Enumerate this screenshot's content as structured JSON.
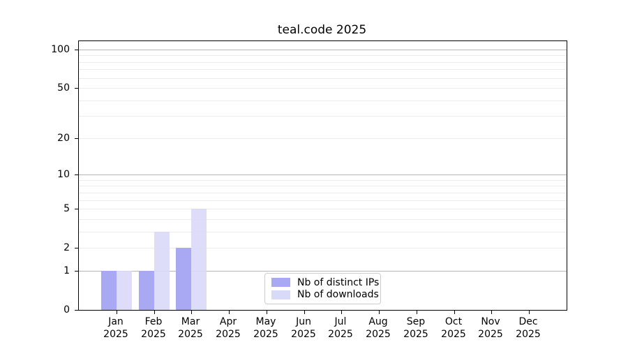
{
  "chart_data": {
    "type": "bar",
    "title": "teal.code 2025",
    "yscale": "log1p",
    "ylim": [
      0,
      116
    ],
    "yticks": [
      0,
      1,
      2,
      5,
      10,
      20,
      50,
      100
    ],
    "major_gridlines": [
      1,
      10,
      100
    ],
    "minor_gridlines": [
      2,
      3,
      4,
      5,
      6,
      7,
      8,
      9,
      20,
      30,
      40,
      50,
      60,
      70,
      80,
      90
    ],
    "grid": true,
    "legend_position": "bottom-center",
    "categories": [
      [
        "Jan",
        "2025"
      ],
      [
        "Feb",
        "2025"
      ],
      [
        "Mar",
        "2025"
      ],
      [
        "Apr",
        "2025"
      ],
      [
        "May",
        "2025"
      ],
      [
        "Jun",
        "2025"
      ],
      [
        "Jul",
        "2025"
      ],
      [
        "Aug",
        "2025"
      ],
      [
        "Sep",
        "2025"
      ],
      [
        "Oct",
        "2025"
      ],
      [
        "Nov",
        "2025"
      ],
      [
        "Dec",
        "2025"
      ]
    ],
    "series": [
      {
        "name": "Nb of distinct IPs",
        "color": "#a8a8f3",
        "values": [
          1,
          1,
          2,
          0,
          0,
          0,
          0,
          0,
          0,
          0,
          0,
          0
        ]
      },
      {
        "name": "Nb of downloads",
        "color": "#d9d9f8",
        "values": [
          1,
          3,
          5,
          0,
          0,
          0,
          0,
          0,
          0,
          0,
          0,
          0
        ]
      }
    ]
  },
  "colors": {
    "major_grid": "#b6b6b6",
    "minor_grid": "#ebebeb",
    "spine": "#000000",
    "background": "#ffffff",
    "legend_border": "#cccccc"
  }
}
